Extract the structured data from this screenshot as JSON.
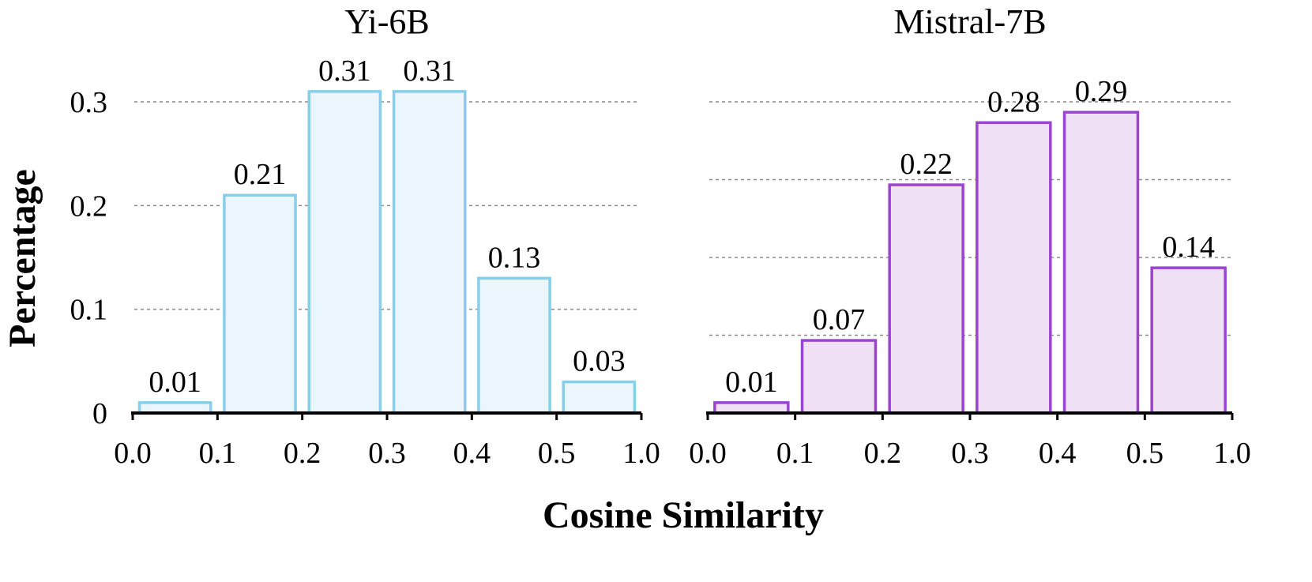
{
  "ylabel": "Percentage",
  "xlabel": "Cosine Similarity",
  "chart_data": [
    {
      "type": "bar",
      "title": "Yi-6B",
      "categories": [
        "0.0-0.1",
        "0.1-0.2",
        "0.2-0.3",
        "0.3-0.4",
        "0.4-0.5",
        "0.5-1.0"
      ],
      "x_tick_labels": [
        "0.0",
        "0.1",
        "0.2",
        "0.3",
        "0.4",
        "0.5",
        "1.0"
      ],
      "values": [
        0.01,
        0.21,
        0.31,
        0.31,
        0.13,
        0.03
      ],
      "data_labels": [
        "0.01",
        "0.21",
        "0.31",
        "0.31",
        "0.13",
        "0.03"
      ],
      "y_ticks": [
        0,
        0.1,
        0.2,
        0.3
      ],
      "y_tick_labels": [
        "0",
        "0.1",
        "0.2",
        "0.3"
      ],
      "ylim": [
        0,
        0.3
      ],
      "grid": "horizontal dashed",
      "colors": {
        "stroke": "#87ceeb",
        "fill": "#eaf6fb"
      }
    },
    {
      "type": "bar",
      "title": "Mistral-7B",
      "categories": [
        "0.0-0.1",
        "0.1-0.2",
        "0.2-0.3",
        "0.3-0.4",
        "0.4-0.5",
        "0.5-1.0"
      ],
      "x_tick_labels": [
        "0.0",
        "0.1",
        "0.2",
        "0.3",
        "0.4",
        "0.5",
        "1.0"
      ],
      "values": [
        0.01,
        0.07,
        0.22,
        0.28,
        0.29,
        0.14
      ],
      "data_labels": [
        "0.01",
        "0.07",
        "0.22",
        "0.28",
        "0.29",
        "0.14"
      ],
      "y_ticks": [
        0,
        0.075,
        0.15,
        0.225,
        0.3
      ],
      "ylim": [
        0,
        0.3
      ],
      "grid": "horizontal dashed",
      "colors": {
        "stroke": "#9b44cf",
        "fill": "#efe0f6"
      }
    }
  ]
}
